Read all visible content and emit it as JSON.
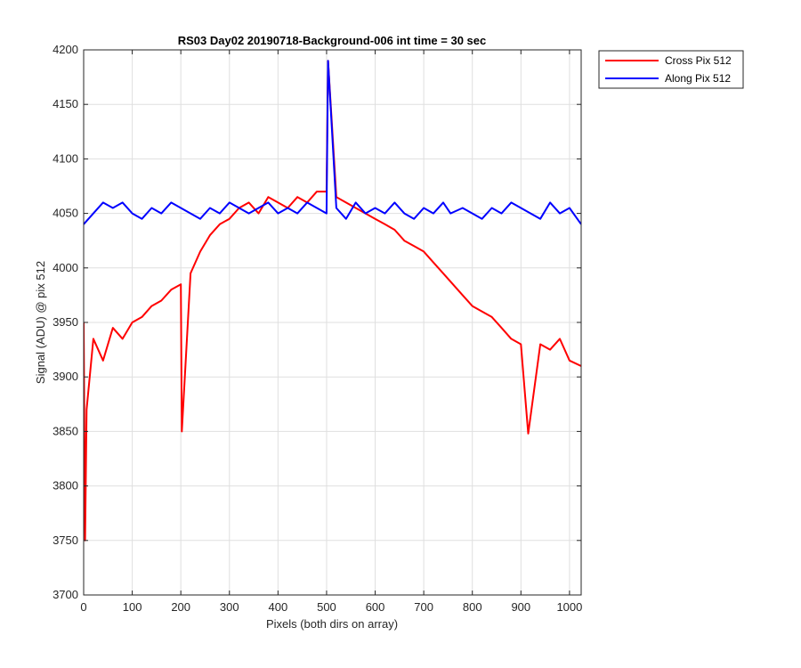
{
  "chart_data": {
    "type": "line",
    "title": "RS03 Day02 20190718-Background-006 int time = 30 sec",
    "xlabel": "Pixels (both dirs on array)",
    "ylabel": "Signal (ADU) @ pix 512",
    "xlim": [
      0,
      1024
    ],
    "ylim": [
      3700,
      4200
    ],
    "xticks": [
      0,
      100,
      200,
      300,
      400,
      500,
      600,
      700,
      800,
      900,
      1000
    ],
    "yticks": [
      3700,
      3750,
      3800,
      3850,
      3900,
      3950,
      4000,
      4050,
      4100,
      4150,
      4200
    ],
    "grid": true,
    "legend_position": "outside-top-right",
    "series": [
      {
        "name": "Cross Pix 512",
        "color": "#ff0000",
        "x": [
          0,
          3,
          6,
          20,
          40,
          60,
          80,
          100,
          120,
          140,
          160,
          180,
          200,
          202,
          220,
          240,
          260,
          280,
          300,
          320,
          340,
          360,
          380,
          400,
          420,
          440,
          460,
          480,
          500,
          503,
          520,
          540,
          560,
          580,
          600,
          620,
          640,
          660,
          680,
          700,
          720,
          740,
          760,
          780,
          800,
          820,
          840,
          860,
          880,
          900,
          915,
          940,
          960,
          980,
          1000,
          1024
        ],
        "values": [
          3950,
          3750,
          3870,
          3935,
          3915,
          3945,
          3935,
          3950,
          3955,
          3965,
          3970,
          3980,
          3985,
          3850,
          3995,
          4015,
          4030,
          4040,
          4045,
          4055,
          4060,
          4050,
          4065,
          4060,
          4055,
          4065,
          4060,
          4070,
          4070,
          4190,
          4065,
          4060,
          4055,
          4050,
          4045,
          4040,
          4035,
          4025,
          4020,
          4015,
          4005,
          3995,
          3985,
          3975,
          3965,
          3960,
          3955,
          3945,
          3935,
          3930,
          3848,
          3930,
          3925,
          3935,
          3915,
          3910
        ]
      },
      {
        "name": "Along Pix 512",
        "color": "#0000ff",
        "x": [
          0,
          20,
          40,
          60,
          80,
          100,
          120,
          140,
          160,
          180,
          200,
          220,
          240,
          260,
          280,
          300,
          320,
          340,
          360,
          380,
          400,
          420,
          440,
          460,
          480,
          500,
          503,
          520,
          540,
          560,
          580,
          600,
          620,
          640,
          660,
          680,
          700,
          720,
          740,
          755,
          780,
          800,
          820,
          840,
          860,
          880,
          900,
          920,
          940,
          960,
          980,
          1000,
          1024
        ],
        "values": [
          4040,
          4050,
          4060,
          4055,
          4060,
          4050,
          4045,
          4055,
          4050,
          4060,
          4055,
          4050,
          4045,
          4055,
          4050,
          4060,
          4055,
          4050,
          4055,
          4060,
          4050,
          4055,
          4050,
          4060,
          4055,
          4050,
          4190,
          4055,
          4045,
          4060,
          4050,
          4055,
          4050,
          4060,
          4050,
          4045,
          4055,
          4050,
          4060,
          4050,
          4055,
          4050,
          4045,
          4055,
          4050,
          4060,
          4055,
          4050,
          4045,
          4060,
          4050,
          4055,
          4040
        ]
      }
    ]
  }
}
